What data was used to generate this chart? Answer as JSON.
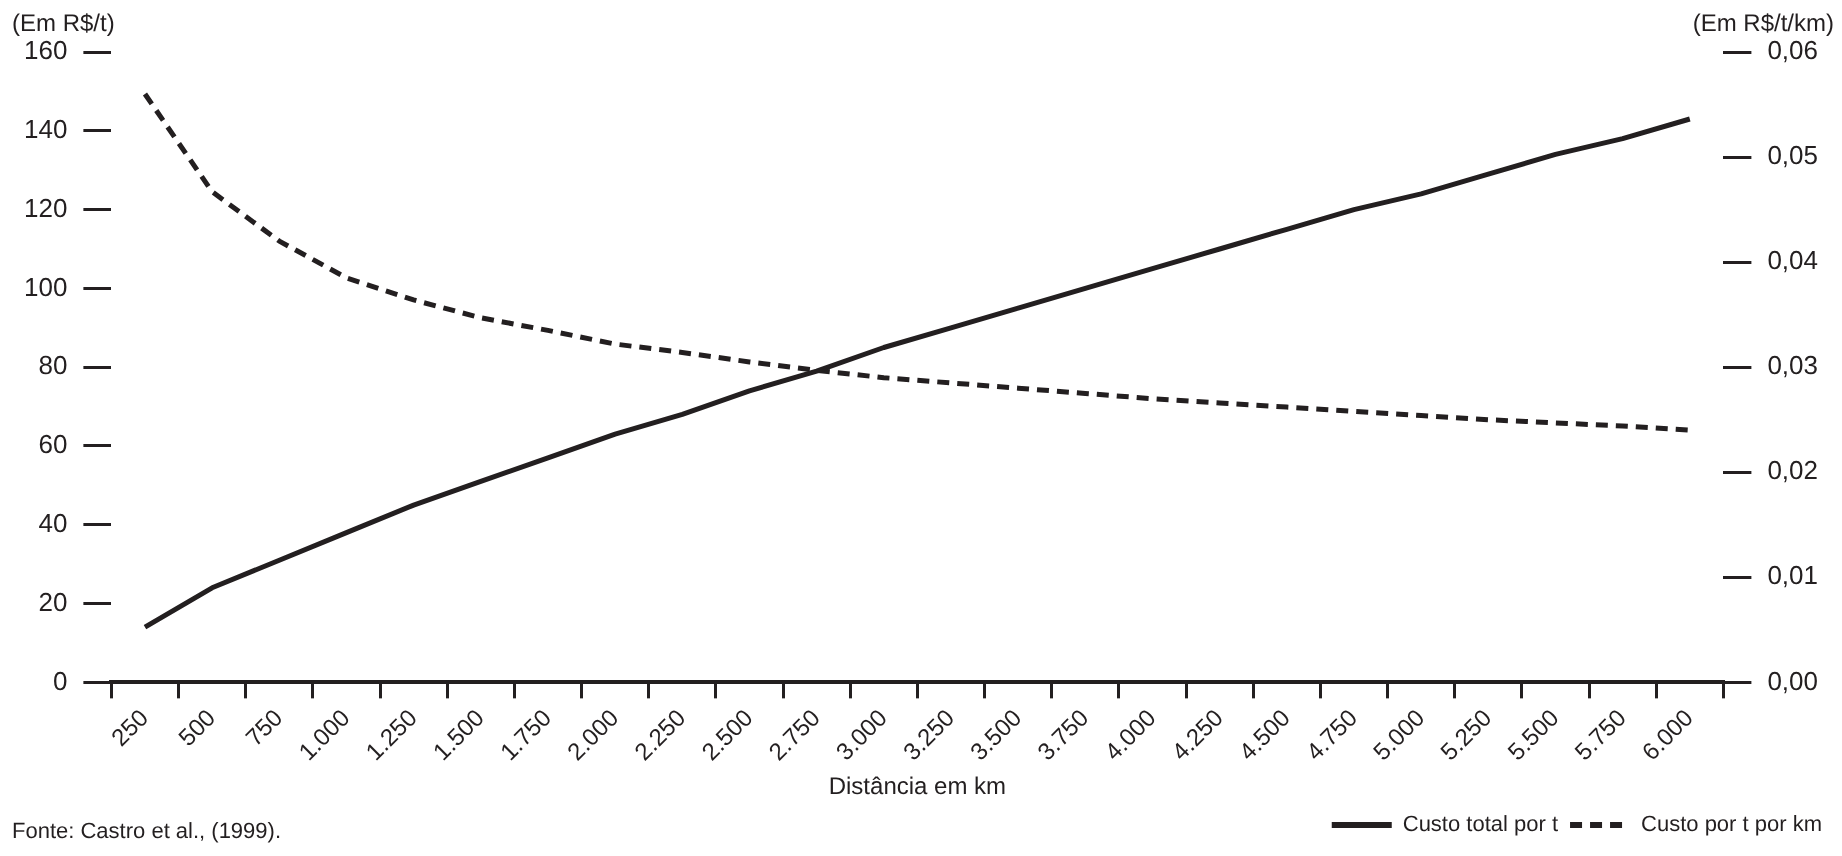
{
  "chart_data": {
    "type": "line",
    "xlabel": "Distância em km",
    "ylabel": "(Em R$/t)",
    "y2label": "(Em R$/t/km)",
    "categories": [
      "250",
      "500",
      "750",
      "1.000",
      "1.250",
      "1.500",
      "1.750",
      "2.000",
      "2.250",
      "2.500",
      "2.750",
      "3.000",
      "3.250",
      "3.500",
      "3.750",
      "4.000",
      "4.250",
      "4.500",
      "4.750",
      "5.000",
      "5.250",
      "5.500",
      "5.750",
      "6.000"
    ],
    "series": [
      {
        "name": "Custo total por t",
        "color": "#231f20",
        "line_style": "solid",
        "values": [
          14,
          24,
          31,
          38,
          45,
          51,
          57,
          63,
          68,
          74,
          79,
          85,
          90,
          95,
          100,
          105,
          110,
          115,
          120,
          124,
          129,
          134,
          138,
          143
        ]
      },
      {
        "name": "Custo por t por km",
        "color": "#231f20",
        "line_style": "dashed",
        "axis": "y2",
        "values": [
          0.056,
          0.0467,
          0.042,
          0.0385,
          0.0364,
          0.0347,
          0.0335,
          0.0322,
          0.0314,
          0.0305,
          0.0297,
          0.029,
          0.0285,
          0.028,
          0.0275,
          0.027,
          0.0266,
          0.0262,
          0.0258,
          0.0254,
          0.025,
          0.0247,
          0.0244,
          0.024
        ]
      }
    ],
    "ylim": [
      0,
      160
    ],
    "yticks": [
      0,
      20,
      40,
      60,
      80,
      100,
      120,
      140,
      160
    ],
    "y2lim": [
      0,
      0.06
    ],
    "y2ticks": [
      {
        "value": 0,
        "label": "0,00"
      },
      {
        "value": 0.01,
        "label": "0,01"
      },
      {
        "value": 0.02,
        "label": "0,02"
      },
      {
        "value": 0.03,
        "label": "0,03"
      },
      {
        "value": 0.04,
        "label": "0,04"
      },
      {
        "value": 0.05,
        "label": "0,05"
      },
      {
        "value": 0.06,
        "label": "0,06"
      }
    ],
    "grid": false,
    "legend": "bottom right",
    "marker": "none",
    "annotations": [
      "Fonte: Castro et al., (1999)."
    ]
  }
}
